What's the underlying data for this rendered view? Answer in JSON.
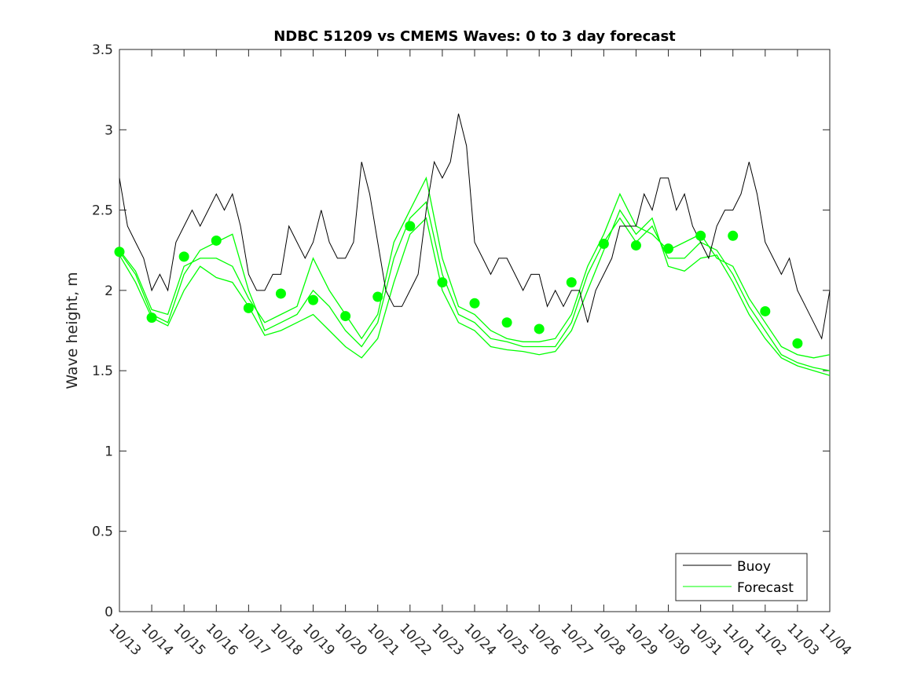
{
  "chart_data": {
    "type": "line",
    "title": "NDBC 51209 vs CMEMS Waves: 0 to 3 day forecast",
    "xlabel": "",
    "ylabel": "Wave height, m",
    "ylim": [
      0,
      3.5
    ],
    "yticks": [
      "0",
      "0.5",
      "1",
      "1.5",
      "2",
      "2.5",
      "3",
      "3.5"
    ],
    "ytick_values": [
      0,
      0.5,
      1,
      1.5,
      2,
      2.5,
      3,
      3.5
    ],
    "xticks": [
      "10/13",
      "10/14",
      "10/15",
      "10/16",
      "10/17",
      "10/18",
      "10/19",
      "10/20",
      "10/21",
      "10/22",
      "10/23",
      "10/24",
      "10/25",
      "10/26",
      "10/27",
      "10/28",
      "10/29",
      "10/30",
      "10/31",
      "11/01",
      "11/02",
      "11/03",
      "11/04"
    ],
    "xlim_days": [
      0,
      22
    ],
    "grid": false,
    "legend": {
      "placement": "bottom-right",
      "entries": [
        "Buoy",
        "Forecast"
      ]
    },
    "colors": {
      "buoy": "#000000",
      "forecast": "#00ff00"
    },
    "buoy": {
      "name": "Buoy",
      "step_days": 0.25,
      "values": [
        2.7,
        2.4,
        2.3,
        2.2,
        2.0,
        2.1,
        2.0,
        2.3,
        2.4,
        2.5,
        2.4,
        2.5,
        2.6,
        2.5,
        2.6,
        2.4,
        2.1,
        2.0,
        2.0,
        2.1,
        2.1,
        2.4,
        2.3,
        2.2,
        2.3,
        2.5,
        2.3,
        2.2,
        2.2,
        2.3,
        2.8,
        2.6,
        2.3,
        2.0,
        1.9,
        1.9,
        2.0,
        2.1,
        2.5,
        2.8,
        2.7,
        2.8,
        3.1,
        2.9,
        2.3,
        2.2,
        2.1,
        2.2,
        2.2,
        2.1,
        2.0,
        2.1,
        2.1,
        1.9,
        2.0,
        1.9,
        2.0,
        2.0,
        1.8,
        2.0,
        2.1,
        2.2,
        2.4,
        2.4,
        2.4,
        2.6,
        2.5,
        2.7,
        2.7,
        2.5,
        2.6,
        2.4,
        2.3,
        2.2,
        2.4,
        2.5,
        2.5,
        2.6,
        2.8,
        2.6,
        2.3,
        2.2,
        2.1,
        2.2,
        2.0,
        1.9,
        1.8,
        1.7,
        2.0
      ]
    },
    "forecast": {
      "name": "Forecast",
      "step_days": 0.5,
      "series": [
        [
          2.24,
          2.1,
          1.85,
          1.8,
          2.1,
          2.25,
          2.3,
          2.35,
          2.0,
          1.75,
          1.8,
          1.85,
          2.0,
          1.9,
          1.75,
          1.65,
          1.8,
          2.2,
          2.45,
          2.55,
          2.1,
          1.85,
          1.8,
          1.7,
          1.68,
          1.65,
          1.65,
          1.65,
          1.8,
          2.1,
          2.3,
          2.45,
          2.3,
          2.4,
          2.2,
          2.2,
          2.3,
          2.25,
          2.1,
          1.9,
          1.75,
          1.6,
          1.55,
          1.52,
          1.5
        ],
        [
          2.22,
          2.05,
          1.83,
          1.78,
          2.0,
          2.15,
          2.08,
          2.05,
          1.9,
          1.72,
          1.75,
          1.8,
          1.85,
          1.75,
          1.65,
          1.58,
          1.7,
          2.05,
          2.35,
          2.45,
          2.0,
          1.8,
          1.75,
          1.65,
          1.63,
          1.62,
          1.6,
          1.62,
          1.75,
          2.0,
          2.25,
          2.5,
          2.35,
          2.45,
          2.15,
          2.12,
          2.2,
          2.22,
          2.05,
          1.85,
          1.7,
          1.58,
          1.53,
          1.5,
          1.47
        ],
        [
          2.25,
          2.12,
          1.88,
          1.85,
          2.15,
          2.2,
          2.2,
          2.15,
          1.95,
          1.8,
          1.85,
          1.9,
          2.2,
          2.0,
          1.85,
          1.7,
          1.85,
          2.3,
          2.5,
          2.7,
          2.2,
          1.9,
          1.85,
          1.75,
          1.7,
          1.68,
          1.68,
          1.7,
          1.85,
          2.15,
          2.35,
          2.6,
          2.4,
          2.35,
          2.25,
          2.3,
          2.35,
          2.2,
          2.15,
          1.95,
          1.8,
          1.65,
          1.6,
          1.58,
          1.6
        ]
      ],
      "daily_markers": [
        2.24,
        1.83,
        2.21,
        2.31,
        1.89,
        1.98,
        1.94,
        1.84,
        1.96,
        2.4,
        2.05,
        1.92,
        1.8,
        1.76,
        2.05,
        2.29,
        2.28,
        2.26,
        2.34,
        2.34,
        1.87,
        1.67
      ]
    }
  }
}
